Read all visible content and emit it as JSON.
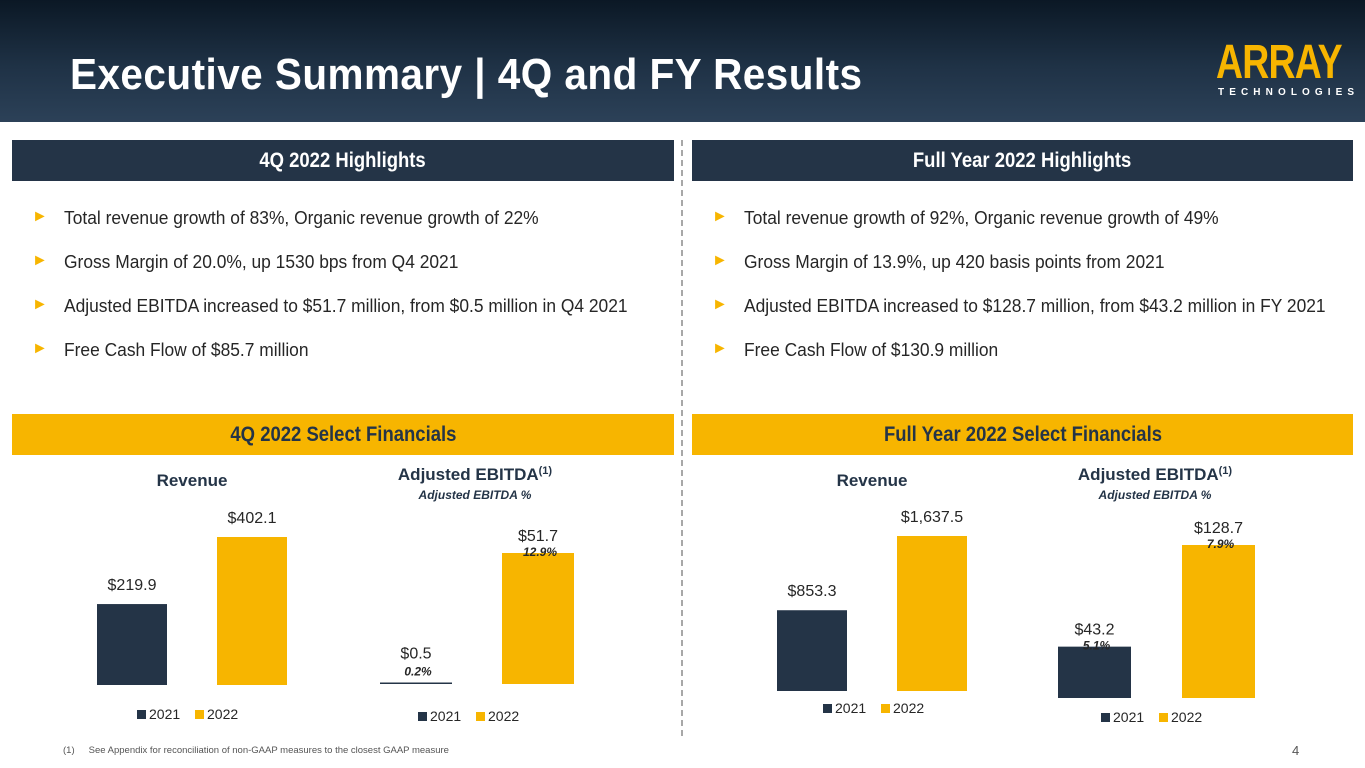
{
  "header": {
    "title": "Executive Summary | 4Q and FY Results",
    "logo_main": "ARRAY",
    "logo_sub": "TECHNOLOGIES"
  },
  "left": {
    "highlights_title": "4Q 2022 Highlights",
    "bullets": [
      "Total revenue growth of 83%, Organic revenue growth of 22%",
      "Gross Margin of 20.0%, up 1530 bps from Q4 2021",
      "Adjusted EBITDA increased to $51.7 million, from $0.5 million in Q4 2021",
      "Free Cash Flow of $85.7 million"
    ],
    "financials_title": "4Q 2022 Select Financials"
  },
  "right": {
    "highlights_title": "Full Year 2022 Highlights",
    "bullets": [
      "Total revenue growth of 92%, Organic revenue growth of 49%",
      "Gross Margin of 13.9%, up 420 basis points from 2021",
      "Adjusted EBITDA increased to $128.7 million, from $43.2 million in FY 2021",
      "Free Cash Flow of $130.9 million"
    ],
    "financials_title": "Full Year 2022 Select Financials"
  },
  "colors": {
    "series_2021": "#243447",
    "series_2022": "#f7b500"
  },
  "chart_data": [
    {
      "type": "bar",
      "title": "Revenue",
      "subtitle": "",
      "categories": [
        "2021",
        "2022"
      ],
      "values": [
        219.9,
        402.1
      ],
      "labels": [
        "$219.9",
        "$402.1"
      ],
      "pct_labels": [],
      "legend": [
        "2021",
        "2022"
      ],
      "ylim": [
        0,
        402.1
      ]
    },
    {
      "type": "bar",
      "title": "Adjusted EBITDA",
      "title_sup": "(1)",
      "subtitle": "Adjusted EBITDA %",
      "categories": [
        "2021",
        "2022"
      ],
      "values": [
        0.5,
        51.7
      ],
      "labels": [
        "$0.5",
        "$51.7"
      ],
      "pct_labels": [
        "0.2%",
        "12.9%"
      ],
      "legend": [
        "2021",
        "2022"
      ],
      "ylim": [
        0,
        51.7
      ]
    },
    {
      "type": "bar",
      "title": "Revenue",
      "subtitle": "",
      "categories": [
        "2021",
        "2022"
      ],
      "values": [
        853.3,
        1637.5
      ],
      "labels": [
        "$853.3",
        "$1,637.5"
      ],
      "pct_labels": [],
      "legend": [
        "2021",
        "2022"
      ],
      "ylim": [
        0,
        1637.5
      ]
    },
    {
      "type": "bar",
      "title": "Adjusted EBITDA",
      "title_sup": "(1)",
      "subtitle": "Adjusted EBITDA %",
      "categories": [
        "2021",
        "2022"
      ],
      "values": [
        43.2,
        128.7
      ],
      "labels": [
        "$43.2",
        "$128.7"
      ],
      "pct_labels": [
        "5.1%",
        "7.9%"
      ],
      "legend": [
        "2021",
        "2022"
      ],
      "ylim": [
        0,
        128.7
      ]
    }
  ],
  "footnote": {
    "number": "(1)",
    "text": "See Appendix for reconciliation of non-GAAP measures to the closest GAAP measure"
  },
  "page_number": "4"
}
